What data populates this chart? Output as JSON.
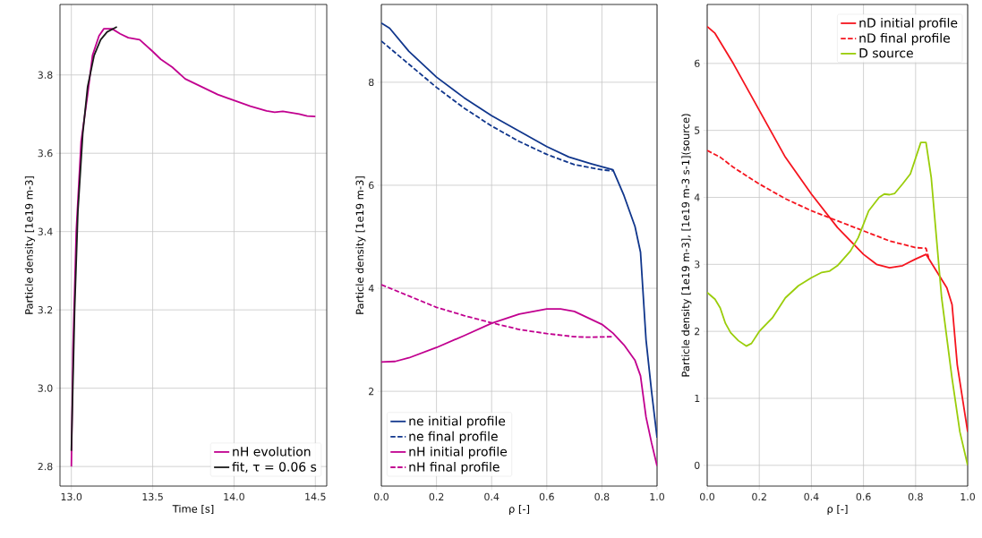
{
  "chart_data": [
    {
      "type": "line",
      "xlabel": "Time [s]",
      "ylabel": "Particle density [1e19 m-3]",
      "xlim": [
        12.93,
        14.57
      ],
      "ylim": [
        2.75,
        3.98
      ],
      "xticks": [
        {
          "value": 13,
          "label": "13.0"
        },
        13.5,
        {
          "value": 14,
          "label": "14.0"
        },
        14.5
      ],
      "yticks": [
        2.8,
        {
          "value": 3,
          "label": "3.0"
        },
        3.2,
        3.4,
        3.6,
        3.8
      ],
      "grid": true,
      "legend": "bottom right",
      "series": [
        {
          "name": "nH evolution",
          "color": "#c1008f",
          "line_style": "solid",
          "x": [
            13.0,
            13.01,
            13.03,
            13.06,
            13.1,
            13.13,
            13.17,
            13.2,
            13.25,
            13.3,
            13.35,
            13.42,
            13.5,
            13.55,
            13.62,
            13.7,
            13.8,
            13.9,
            14.0,
            14.1,
            14.2,
            14.25,
            14.3,
            14.4,
            14.45,
            14.5
          ],
          "values": [
            2.8,
            3.1,
            3.4,
            3.63,
            3.75,
            3.85,
            3.9,
            3.918,
            3.918,
            3.905,
            3.895,
            3.89,
            3.86,
            3.84,
            3.82,
            3.79,
            3.77,
            3.75,
            3.735,
            3.72,
            3.708,
            3.705,
            3.707,
            3.7,
            3.695,
            3.694
          ]
        },
        {
          "name": "fit, τ = 0.06 s",
          "color": "#1a1a1a",
          "line_style": "solid",
          "x": [
            13.0,
            13.02,
            13.04,
            13.07,
            13.1,
            13.14,
            13.18,
            13.22,
            13.28
          ],
          "values": [
            2.84,
            3.2,
            3.45,
            3.65,
            3.77,
            3.85,
            3.89,
            3.91,
            3.923
          ]
        }
      ]
    },
    {
      "type": "line",
      "xlabel": "ρ [-]",
      "ylabel": "Particle density [1e19 m-3]",
      "xlim": [
        0,
        1
      ],
      "ylim": [
        0.16,
        9.51
      ],
      "xticks": [
        {
          "value": 0,
          "label": "0.0"
        },
        0.2,
        0.4,
        0.6,
        0.8,
        {
          "value": 1,
          "label": "1.0"
        }
      ],
      "yticks": [
        2,
        4,
        6,
        8
      ],
      "grid": true,
      "legend": "bottom left",
      "series": [
        {
          "name": "ne initial profile",
          "color": "#10368c",
          "line_style": "solid",
          "x": [
            0,
            0.03,
            0.1,
            0.2,
            0.3,
            0.4,
            0.5,
            0.6,
            0.68,
            0.76,
            0.84,
            0.88,
            0.92,
            0.94,
            0.96,
            0.98,
            1.0
          ],
          "values": [
            9.15,
            9.05,
            8.6,
            8.1,
            7.7,
            7.35,
            7.05,
            6.75,
            6.55,
            6.42,
            6.3,
            5.8,
            5.2,
            4.7,
            3.0,
            2.0,
            1.1
          ]
        },
        {
          "name": "ne final profile",
          "color": "#10368c",
          "line_style": "dashed",
          "x": [
            0,
            0.1,
            0.2,
            0.3,
            0.4,
            0.5,
            0.6,
            0.7,
            0.8,
            0.84
          ],
          "values": [
            8.8,
            8.35,
            7.9,
            7.5,
            7.15,
            6.85,
            6.6,
            6.4,
            6.3,
            6.28
          ]
        },
        {
          "name": "nH initial profile",
          "color": "#c1008f",
          "line_style": "solid",
          "x": [
            0,
            0.05,
            0.1,
            0.2,
            0.3,
            0.4,
            0.5,
            0.6,
            0.65,
            0.7,
            0.8,
            0.84,
            0.88,
            0.92,
            0.94,
            0.96,
            0.98,
            1.0
          ],
          "values": [
            2.57,
            2.58,
            2.65,
            2.85,
            3.08,
            3.32,
            3.5,
            3.6,
            3.6,
            3.55,
            3.3,
            3.13,
            2.9,
            2.6,
            2.3,
            1.5,
            1.0,
            0.55
          ]
        },
        {
          "name": "nH final profile",
          "color": "#c1008f",
          "line_style": "dashed",
          "x": [
            0,
            0.1,
            0.2,
            0.3,
            0.4,
            0.5,
            0.6,
            0.7,
            0.75,
            0.84
          ],
          "values": [
            4.07,
            3.85,
            3.63,
            3.47,
            3.33,
            3.2,
            3.12,
            3.06,
            3.05,
            3.06
          ]
        }
      ]
    },
    {
      "type": "line",
      "xlabel": "ρ [-]",
      "ylabel": "Particle density [1e19 m-3], [1e19 m-3 s-1](source)",
      "xlim": [
        0,
        1
      ],
      "ylim": [
        -0.31,
        6.88
      ],
      "xticks": [
        {
          "value": 0,
          "label": "0.0"
        },
        0.2,
        0.4,
        0.6,
        0.8,
        {
          "value": 1,
          "label": "1.0"
        }
      ],
      "yticks": [
        0,
        1,
        2,
        3,
        4,
        5,
        6
      ],
      "grid": true,
      "legend": "top right",
      "series": [
        {
          "name": "nD initial profile",
          "color": "#f5141e",
          "line_style": "solid",
          "x": [
            0,
            0.03,
            0.1,
            0.2,
            0.3,
            0.4,
            0.5,
            0.6,
            0.65,
            0.7,
            0.75,
            0.8,
            0.84,
            0.88,
            0.92,
            0.94,
            0.96,
            1.0
          ],
          "values": [
            6.55,
            6.45,
            6.0,
            5.3,
            4.6,
            4.05,
            3.55,
            3.15,
            3.0,
            2.95,
            2.98,
            3.08,
            3.15,
            2.9,
            2.65,
            2.4,
            1.5,
            0.5
          ]
        },
        {
          "name": "nD final profile",
          "color": "#f5141e",
          "line_style": "dashed",
          "x": [
            0,
            0.05,
            0.1,
            0.2,
            0.3,
            0.4,
            0.5,
            0.6,
            0.7,
            0.8,
            0.84,
            0.85
          ],
          "values": [
            4.7,
            4.6,
            4.45,
            4.2,
            3.98,
            3.8,
            3.65,
            3.5,
            3.35,
            3.25,
            3.24,
            3.1
          ]
        },
        {
          "name": "D source",
          "color": "#9acd0a",
          "line_style": "solid",
          "x": [
            0,
            0.03,
            0.05,
            0.07,
            0.09,
            0.12,
            0.15,
            0.17,
            0.2,
            0.25,
            0.3,
            0.35,
            0.4,
            0.44,
            0.47,
            0.5,
            0.55,
            0.58,
            0.62,
            0.66,
            0.68,
            0.7,
            0.72,
            0.75,
            0.78,
            0.82,
            0.84,
            0.86,
            0.88,
            0.9,
            0.94,
            0.97,
            1.0
          ],
          "values": [
            2.58,
            2.48,
            2.35,
            2.12,
            1.98,
            1.86,
            1.78,
            1.82,
            2.0,
            2.2,
            2.5,
            2.68,
            2.8,
            2.88,
            2.9,
            2.98,
            3.2,
            3.4,
            3.8,
            4.0,
            4.05,
            4.04,
            4.06,
            4.2,
            4.35,
            4.82,
            4.82,
            4.3,
            3.4,
            2.5,
            1.3,
            0.5,
            0.0
          ]
        }
      ]
    }
  ]
}
